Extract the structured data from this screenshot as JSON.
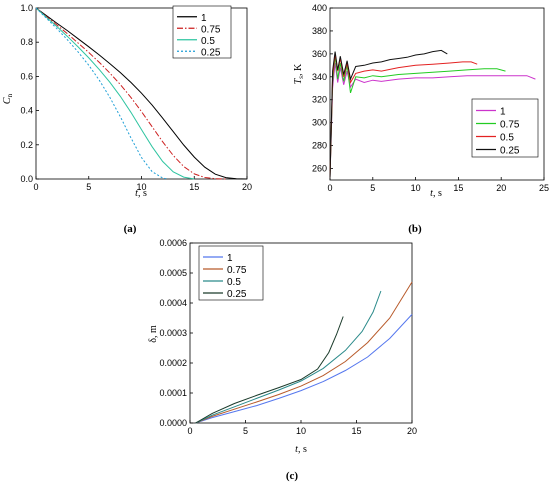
{
  "chart_data": [
    {
      "id": "a",
      "type": "line",
      "panel_label": "(a)",
      "xlabel": "t",
      "xunit": ", s",
      "ylabel": "C",
      "ylabel_sub": "n",
      "xlim": [
        0,
        20
      ],
      "ylim": [
        0,
        1.0
      ],
      "xticks": [
        0,
        5,
        10,
        15,
        20
      ],
      "yticks": [
        0.0,
        0.2,
        0.4,
        0.6,
        0.8,
        1.0
      ],
      "ytick_labels": [
        "0.0",
        "0.2",
        "0.4",
        "0.6",
        "0.8",
        "1.0"
      ],
      "legend_position": "top-right",
      "series": [
        {
          "name": "1",
          "color": "#000000",
          "dash": "",
          "points": [
            [
              0,
              1.0
            ],
            [
              1,
              0.955
            ],
            [
              2,
              0.91
            ],
            [
              3,
              0.866
            ],
            [
              4,
              0.82
            ],
            [
              5,
              0.773
            ],
            [
              6,
              0.725
            ],
            [
              7,
              0.675
            ],
            [
              8,
              0.622
            ],
            [
              9,
              0.565
            ],
            [
              10,
              0.502
            ],
            [
              11,
              0.432
            ],
            [
              12,
              0.356
            ],
            [
              13,
              0.277
            ],
            [
              14,
              0.199
            ],
            [
              15,
              0.128
            ],
            [
              16,
              0.069
            ],
            [
              17,
              0.028
            ],
            [
              18,
              0.008
            ],
            [
              19,
              0.001
            ],
            [
              20,
              0.0
            ]
          ]
        },
        {
          "name": "0.75",
          "color": "#cc1f1f",
          "dash": "6,2,1.5,2",
          "points": [
            [
              0,
              1.0
            ],
            [
              1,
              0.95
            ],
            [
              2,
              0.9
            ],
            [
              3,
              0.848
            ],
            [
              4,
              0.795
            ],
            [
              5,
              0.74
            ],
            [
              6,
              0.682
            ],
            [
              7,
              0.62
            ],
            [
              8,
              0.552
            ],
            [
              9,
              0.477
            ],
            [
              10,
              0.394
            ],
            [
              11,
              0.306
            ],
            [
              12,
              0.218
            ],
            [
              13,
              0.138
            ],
            [
              14,
              0.073
            ],
            [
              15,
              0.03
            ],
            [
              16,
              0.009
            ],
            [
              17,
              0.002
            ],
            [
              18,
              0.0
            ]
          ]
        },
        {
          "name": "0.5",
          "color": "#2ec4a0",
          "dash": "",
          "points": [
            [
              0,
              1.0
            ],
            [
              1,
              0.945
            ],
            [
              2,
              0.89
            ],
            [
              3,
              0.832
            ],
            [
              4,
              0.772
            ],
            [
              5,
              0.708
            ],
            [
              6,
              0.64
            ],
            [
              7,
              0.566
            ],
            [
              8,
              0.483
            ],
            [
              9,
              0.39
            ],
            [
              10,
              0.289
            ],
            [
              11,
              0.189
            ],
            [
              12,
              0.103
            ],
            [
              13,
              0.042
            ],
            [
              14,
              0.011
            ],
            [
              15,
              0.0
            ]
          ]
        },
        {
          "name": "0.25",
          "color": "#1e9fd6",
          "dash": "2,2",
          "points": [
            [
              0,
              1.0
            ],
            [
              1,
              0.94
            ],
            [
              2,
              0.878
            ],
            [
              3,
              0.812
            ],
            [
              4,
              0.742
            ],
            [
              5,
              0.665
            ],
            [
              6,
              0.578
            ],
            [
              7,
              0.478
            ],
            [
              8,
              0.364
            ],
            [
              9,
              0.241
            ],
            [
              10,
              0.125
            ],
            [
              11,
              0.043
            ],
            [
              12,
              0.006
            ],
            [
              12.5,
              0.0
            ]
          ]
        }
      ]
    },
    {
      "id": "b",
      "type": "line",
      "panel_label": "(b)",
      "xlabel": "t",
      "xunit": ", s",
      "ylabel": "T",
      "ylabel_sub": "s",
      "yunit": ", K",
      "xlim": [
        0,
        25
      ],
      "ylim": [
        250,
        400
      ],
      "xticks": [
        0,
        5,
        10,
        15,
        20,
        25
      ],
      "yticks": [
        260,
        280,
        300,
        320,
        340,
        360,
        380,
        400
      ],
      "legend_position": "bottom-right",
      "series": [
        {
          "name": "1",
          "color": "#cc33cc",
          "points": [
            [
              0,
              252
            ],
            [
              0.3,
              330
            ],
            [
              0.6,
              352
            ],
            [
              0.9,
              335
            ],
            [
              1.2,
              348
            ],
            [
              1.6,
              333
            ],
            [
              2,
              345
            ],
            [
              2.4,
              331
            ],
            [
              3,
              338
            ],
            [
              4,
              335
            ],
            [
              5,
              337
            ],
            [
              6,
              336
            ],
            [
              8,
              338
            ],
            [
              10,
              339
            ],
            [
              12,
              339
            ],
            [
              14,
              340
            ],
            [
              16,
              341
            ],
            [
              18,
              341
            ],
            [
              20,
              341
            ],
            [
              22,
              341
            ],
            [
              23,
              341
            ],
            [
              24,
              338
            ]
          ]
        },
        {
          "name": "0.75",
          "color": "#22cc22",
          "points": [
            [
              0,
              252
            ],
            [
              0.3,
              335
            ],
            [
              0.6,
              358
            ],
            [
              0.9,
              338
            ],
            [
              1.2,
              352
            ],
            [
              1.6,
              336
            ],
            [
              2,
              350
            ],
            [
              2.4,
              326
            ],
            [
              3,
              340
            ],
            [
              4,
              339
            ],
            [
              5,
              341
            ],
            [
              6,
              340
            ],
            [
              8,
              342
            ],
            [
              10,
              343
            ],
            [
              12,
              344
            ],
            [
              14,
              345
            ],
            [
              16,
              346
            ],
            [
              18,
              347
            ],
            [
              19.5,
              347
            ],
            [
              20.5,
              345
            ]
          ]
        },
        {
          "name": "0.5",
          "color": "#e32222",
          "points": [
            [
              0,
              252
            ],
            [
              0.3,
              340
            ],
            [
              0.6,
              360
            ],
            [
              0.9,
              345
            ],
            [
              1.2,
              356
            ],
            [
              1.6,
              340
            ],
            [
              2,
              352
            ],
            [
              2.4,
              335
            ],
            [
              3,
              343
            ],
            [
              4,
              345
            ],
            [
              5,
              346
            ],
            [
              6,
              345
            ],
            [
              8,
              348
            ],
            [
              10,
              350
            ],
            [
              12,
              351
            ],
            [
              14,
              352
            ],
            [
              15.5,
              353
            ],
            [
              16.5,
              353
            ],
            [
              17.2,
              351
            ]
          ]
        },
        {
          "name": "0.25",
          "color": "#111111",
          "points": [
            [
              0,
              252
            ],
            [
              0.3,
              345
            ],
            [
              0.6,
              362
            ],
            [
              0.9,
              346
            ],
            [
              1.2,
              358
            ],
            [
              1.6,
              342
            ],
            [
              2,
              354
            ],
            [
              2.4,
              338
            ],
            [
              3,
              349
            ],
            [
              4,
              350
            ],
            [
              5,
              352
            ],
            [
              6,
              353
            ],
            [
              7,
              355
            ],
            [
              8,
              356
            ],
            [
              9,
              357
            ],
            [
              10,
              359
            ],
            [
              11,
              360
            ],
            [
              12,
              362
            ],
            [
              13,
              363
            ],
            [
              13.7,
              360
            ]
          ]
        }
      ]
    },
    {
      "id": "c",
      "type": "line",
      "panel_label": "(c)",
      "xlabel": "t",
      "xunit": ", s",
      "ylabel": "δ, m",
      "xlim": [
        0,
        20
      ],
      "ylim": [
        0,
        0.0006
      ],
      "xticks": [
        0,
        5,
        10,
        15,
        20
      ],
      "yticks": [
        0,
        0.0001,
        0.0002,
        0.0003,
        0.0004,
        0.0005,
        0.0006
      ],
      "ytick_labels": [
        "0.0000",
        "0.0001",
        "0.0002",
        "0.0003",
        "0.0004",
        "0.0005",
        "0.0006"
      ],
      "legend_position": "top-left",
      "series": [
        {
          "name": "1",
          "color": "#5577ee",
          "points": [
            [
              0.5,
              0
            ],
            [
              2,
              1.8e-05
            ],
            [
              4,
              3.8e-05
            ],
            [
              6,
              5.8e-05
            ],
            [
              8,
              8.2e-05
            ],
            [
              10,
              0.000108
            ],
            [
              12,
              0.000138
            ],
            [
              14,
              0.000175
            ],
            [
              16,
              0.00022
            ],
            [
              18,
              0.000282
            ],
            [
              20,
              0.000362
            ]
          ]
        },
        {
          "name": "0.75",
          "color": "#b85a2a",
          "points": [
            [
              0.5,
              0
            ],
            [
              2,
              2.2e-05
            ],
            [
              4,
              4.6e-05
            ],
            [
              6,
              7e-05
            ],
            [
              8,
              9.5e-05
            ],
            [
              10,
              0.000123
            ],
            [
              12,
              0.000158
            ],
            [
              14,
              0.000205
            ],
            [
              16,
              0.000268
            ],
            [
              18,
              0.00035
            ],
            [
              20,
              0.00047
            ]
          ]
        },
        {
          "name": "0.5",
          "color": "#2a8a8a",
          "points": [
            [
              0.5,
              0
            ],
            [
              2,
              2.6e-05
            ],
            [
              4,
              5.4e-05
            ],
            [
              6,
              8.2e-05
            ],
            [
              8,
              0.00011
            ],
            [
              10,
              0.00014
            ],
            [
              12,
              0.000182
            ],
            [
              14,
              0.000242
            ],
            [
              15.5,
              0.000305
            ],
            [
              16.5,
              0.00037
            ],
            [
              17.2,
              0.00044
            ]
          ]
        },
        {
          "name": "0.25",
          "color": "#1a3a2a",
          "points": [
            [
              0.5,
              0
            ],
            [
              2,
              3.2e-05
            ],
            [
              4,
              6.5e-05
            ],
            [
              6,
              9.2e-05
            ],
            [
              8,
              0.000118
            ],
            [
              10,
              0.000145
            ],
            [
              11.5,
              0.00018
            ],
            [
              12.5,
              0.000235
            ],
            [
              13.2,
              0.000295
            ],
            [
              13.8,
              0.000355
            ]
          ]
        }
      ]
    }
  ]
}
